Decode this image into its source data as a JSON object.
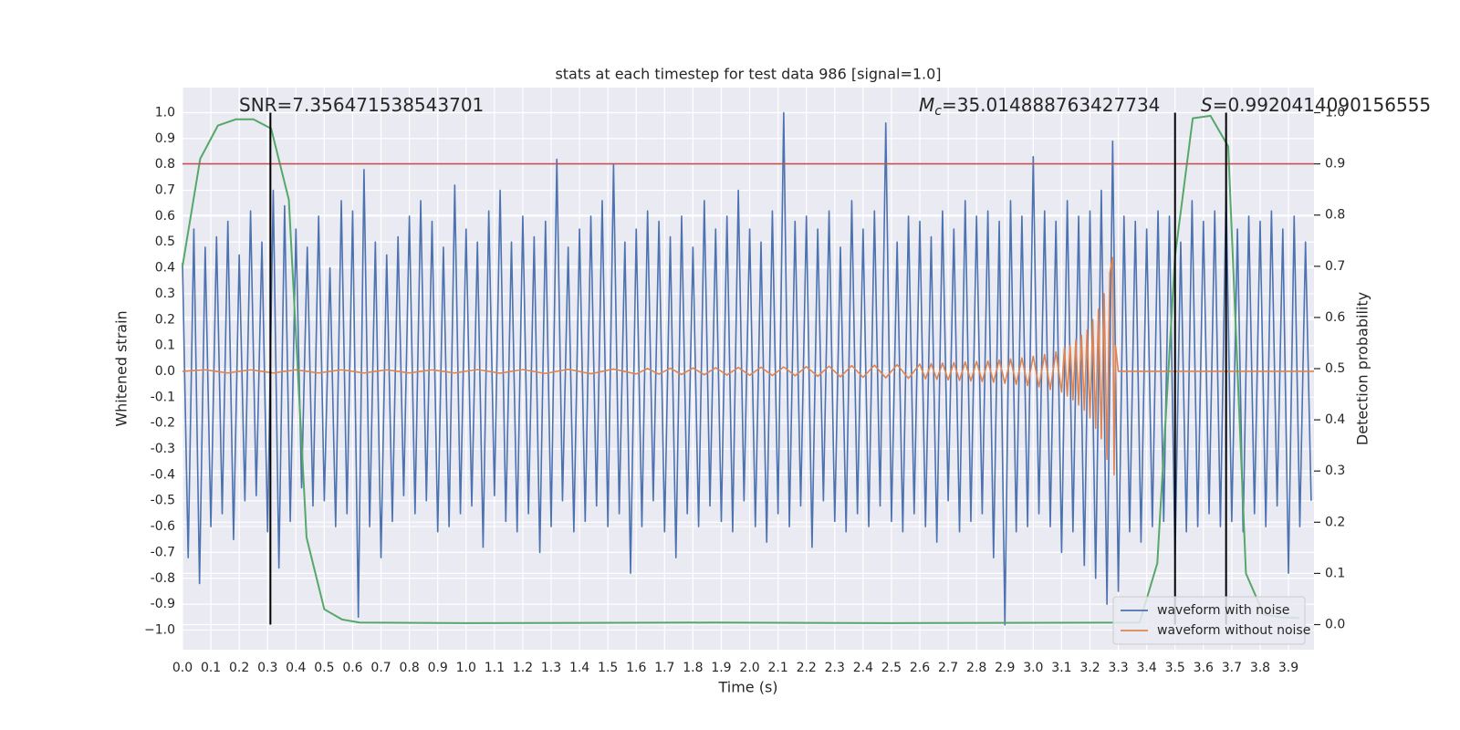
{
  "chart_data": {
    "type": "line",
    "title": "stats at each timestep for test data 986 [signal=1.0]",
    "xlabel": "Time (s)",
    "ylabel": "Whitened strain",
    "y2label": "Detection probability",
    "grid": true,
    "legend": "lower right",
    "xlim": [
      0,
      3.99
    ],
    "ylim": [
      -1.076,
      1.097
    ],
    "y2lim": [
      -0.049,
      1.049
    ],
    "xticks": [
      {
        "value": 0,
        "label": "0.0"
      },
      0.1,
      0.2,
      0.3,
      0.4,
      0.5,
      0.6,
      0.7,
      0.8,
      0.9,
      {
        "value": 1,
        "label": "1.0"
      },
      1.1,
      1.2,
      1.3,
      1.4,
      1.5,
      1.6,
      1.7,
      1.8,
      1.9,
      {
        "value": 2,
        "label": "2.0"
      },
      2.1,
      2.2,
      2.3,
      2.4,
      2.5,
      2.6,
      2.7,
      2.8,
      2.9,
      {
        "value": 3,
        "label": "3.0"
      },
      3.1,
      3.2,
      3.3,
      3.4,
      3.5,
      3.6,
      3.7,
      3.8,
      3.9
    ],
    "yticks": [
      {
        "value": -1,
        "label": "−1.0"
      },
      -0.9,
      -0.8,
      -0.7,
      -0.6,
      -0.5,
      -0.4,
      -0.3,
      -0.2,
      -0.1,
      {
        "value": 0,
        "label": "0.0"
      },
      0.1,
      0.2,
      0.3,
      0.4,
      0.5,
      0.6,
      0.7,
      0.8,
      0.9,
      {
        "value": 1,
        "label": "1.0"
      }
    ],
    "y2ticks": [
      {
        "value": 0,
        "label": "0.0"
      },
      0.1,
      0.2,
      0.3,
      0.4,
      0.5,
      0.6,
      0.7,
      0.8,
      0.9,
      {
        "value": 1,
        "label": "1.0"
      }
    ],
    "series": [
      {
        "name": "waveform with noise",
        "color": "#4c72b0",
        "x": [
          0,
          0.02,
          0.04,
          0.06,
          0.08,
          0.1,
          0.12,
          0.14,
          0.16,
          0.18,
          0.2,
          0.22,
          0.24,
          0.26,
          0.28,
          0.3,
          0.32,
          0.34,
          0.36,
          0.38,
          0.4,
          0.42,
          0.44,
          0.46,
          0.48,
          0.5,
          0.52,
          0.54,
          0.56,
          0.58,
          0.6,
          0.62,
          0.64,
          0.66,
          0.68,
          0.7,
          0.72,
          0.74,
          0.76,
          0.78,
          0.8,
          0.82,
          0.84,
          0.86,
          0.88,
          0.9,
          0.92,
          0.94,
          0.96,
          0.98,
          1,
          1.02,
          1.04,
          1.06,
          1.08,
          1.1,
          1.12,
          1.14,
          1.16,
          1.18,
          1.2,
          1.22,
          1.24,
          1.26,
          1.28,
          1.3,
          1.32,
          1.34,
          1.36,
          1.38,
          1.4,
          1.42,
          1.44,
          1.46,
          1.48,
          1.5,
          1.52,
          1.54,
          1.56,
          1.58,
          1.6,
          1.62,
          1.64,
          1.66,
          1.68,
          1.7,
          1.72,
          1.74,
          1.76,
          1.78,
          1.8,
          1.82,
          1.84,
          1.86,
          1.88,
          1.9,
          1.92,
          1.94,
          1.96,
          1.98,
          2,
          2.02,
          2.04,
          2.06,
          2.08,
          2.1,
          2.12,
          2.14,
          2.16,
          2.18,
          2.2,
          2.22,
          2.24,
          2.26,
          2.28,
          2.3,
          2.32,
          2.34,
          2.36,
          2.38,
          2.4,
          2.42,
          2.44,
          2.46,
          2.48,
          2.5,
          2.52,
          2.54,
          2.56,
          2.58,
          2.6,
          2.62,
          2.64,
          2.66,
          2.68,
          2.7,
          2.72,
          2.74,
          2.76,
          2.78,
          2.8,
          2.82,
          2.84,
          2.86,
          2.88,
          2.9,
          2.92,
          2.94,
          2.96,
          2.98,
          3,
          3.02,
          3.04,
          3.06,
          3.08,
          3.1,
          3.12,
          3.14,
          3.16,
          3.18,
          3.2,
          3.22,
          3.24,
          3.26,
          3.28,
          3.3,
          3.32,
          3.34,
          3.36,
          3.38,
          3.4,
          3.42,
          3.44,
          3.46,
          3.48,
          3.5,
          3.52,
          3.54,
          3.56,
          3.58,
          3.6,
          3.62,
          3.64,
          3.66,
          3.68,
          3.7,
          3.72,
          3.74,
          3.76,
          3.78,
          3.8,
          3.82,
          3.84,
          3.86,
          3.88,
          3.9,
          3.92,
          3.94,
          3.96,
          3.98
        ],
        "values": [
          0.42,
          -0.72,
          0.55,
          -0.82,
          0.48,
          -0.6,
          0.52,
          -0.55,
          0.58,
          -0.65,
          0.45,
          -0.5,
          0.62,
          -0.48,
          0.5,
          -0.62,
          0.7,
          -0.76,
          0.64,
          -0.58,
          0.55,
          -0.45,
          0.48,
          -0.52,
          0.6,
          -0.5,
          0.4,
          -0.6,
          0.66,
          -0.55,
          0.62,
          -0.95,
          0.78,
          -0.6,
          0.5,
          -0.72,
          0.45,
          -0.58,
          0.52,
          -0.48,
          0.6,
          -0.55,
          0.66,
          -0.5,
          0.58,
          -0.62,
          0.48,
          -0.6,
          0.72,
          -0.55,
          0.55,
          -0.52,
          0.5,
          -0.68,
          0.62,
          -0.48,
          0.7,
          -0.58,
          0.5,
          -0.62,
          0.6,
          -0.55,
          0.52,
          -0.7,
          0.58,
          -0.6,
          0.82,
          -0.5,
          0.48,
          -0.62,
          0.55,
          -0.58,
          0.6,
          -0.52,
          0.66,
          -0.6,
          0.8,
          -0.55,
          0.5,
          -0.78,
          0.55,
          -0.6,
          0.62,
          -0.5,
          0.58,
          -0.62,
          0.52,
          -0.72,
          0.6,
          -0.55,
          0.48,
          -0.6,
          0.66,
          -0.52,
          0.55,
          -0.58,
          0.6,
          -0.62,
          0.7,
          -0.5,
          0.55,
          -0.6,
          0.5,
          -0.66,
          0.62,
          -0.55,
          1.0,
          -0.6,
          0.58,
          -0.52,
          0.6,
          -0.68,
          0.55,
          -0.5,
          0.62,
          -0.58,
          0.48,
          -0.62,
          0.66,
          -0.55,
          0.55,
          -0.6,
          0.62,
          -0.52,
          0.96,
          -0.58,
          0.5,
          -0.62,
          0.6,
          -0.55,
          0.58,
          -0.6,
          0.52,
          -0.66,
          0.62,
          -0.5,
          0.55,
          -0.62,
          0.66,
          -0.58,
          0.6,
          -0.55,
          0.62,
          -0.72,
          0.58,
          -0.98,
          0.66,
          -0.62,
          0.6,
          -0.6,
          0.83,
          -0.55,
          0.62,
          -0.6,
          0.58,
          -0.7,
          0.66,
          -0.62,
          0.6,
          -0.75,
          0.62,
          -0.8,
          0.7,
          -0.9,
          0.89,
          -0.85,
          0.6,
          -0.62,
          0.58,
          -0.66,
          0.55,
          -0.6,
          0.62,
          -0.58,
          0.6,
          -0.72,
          0.5,
          -0.62,
          0.66,
          -0.6,
          0.58,
          -0.55,
          0.62,
          -0.6,
          0.7,
          -0.58,
          0.55,
          -0.62,
          0.6,
          -0.55,
          0.58,
          -0.6,
          0.62,
          -0.52,
          0.55,
          -0.78,
          0.6,
          -0.6,
          0.5,
          -0.5
        ]
      },
      {
        "name": "waveform without noise",
        "color": "#dd8452",
        "x": [
          0,
          0.08,
          0.16,
          0.24,
          0.32,
          0.4,
          0.48,
          0.56,
          0.64,
          0.72,
          0.8,
          0.88,
          0.96,
          1.04,
          1.12,
          1.2,
          1.28,
          1.36,
          1.44,
          1.52,
          1.6,
          1.64,
          1.68,
          1.72,
          1.76,
          1.8,
          1.84,
          1.88,
          1.92,
          1.96,
          2,
          2.04,
          2.08,
          2.12,
          2.16,
          2.2,
          2.24,
          2.28,
          2.32,
          2.36,
          2.4,
          2.44,
          2.48,
          2.52,
          2.56,
          2.6,
          2.62,
          2.64,
          2.66,
          2.68,
          2.7,
          2.72,
          2.74,
          2.76,
          2.78,
          2.8,
          2.82,
          2.84,
          2.86,
          2.88,
          2.9,
          2.92,
          2.94,
          2.96,
          2.98,
          3,
          3.02,
          3.04,
          3.06,
          3.08,
          3.1,
          3.11,
          3.12,
          3.13,
          3.14,
          3.15,
          3.16,
          3.17,
          3.18,
          3.19,
          3.2,
          3.21,
          3.22,
          3.23,
          3.24,
          3.25,
          3.26,
          3.27,
          3.28,
          3.285,
          3.29,
          3.3,
          3.99
        ],
        "values": [
          0,
          0.006,
          -0.006,
          0.006,
          -0.006,
          0.006,
          -0.006,
          0.006,
          -0.006,
          0.006,
          -0.006,
          0.006,
          -0.006,
          0.007,
          -0.007,
          0.007,
          -0.008,
          0.008,
          -0.009,
          0.009,
          -0.01,
          0.011,
          -0.011,
          0.012,
          -0.012,
          0.013,
          -0.013,
          0.014,
          -0.014,
          0.015,
          -0.015,
          0.016,
          -0.016,
          0.017,
          -0.017,
          0.018,
          -0.019,
          0.02,
          -0.021,
          0.022,
          -0.023,
          0.024,
          -0.025,
          0.026,
          -0.027,
          0.028,
          -0.029,
          0.03,
          -0.031,
          0.032,
          -0.033,
          0.034,
          -0.035,
          0.036,
          -0.037,
          0.038,
          -0.039,
          0.04,
          -0.042,
          0.044,
          -0.046,
          0.048,
          -0.05,
          0.052,
          -0.055,
          0.058,
          -0.06,
          0.065,
          -0.07,
          0.075,
          -0.08,
          0.09,
          -0.095,
          0.1,
          -0.11,
          0.12,
          -0.13,
          0.14,
          -0.15,
          0.16,
          -0.18,
          0.2,
          -0.22,
          0.24,
          -0.26,
          0.3,
          -0.34,
          0.38,
          0.44,
          -0.4,
          0.1,
          0,
          0
        ]
      },
      {
        "color": "#55a868",
        "axis": "y2",
        "x": [
          0,
          0.0625,
          0.125,
          0.1875,
          0.25,
          0.3125,
          0.375,
          0.4375,
          0.5,
          0.5625,
          0.625,
          1.0,
          1.875,
          2.5,
          3.375,
          3.4375,
          3.5,
          3.5625,
          3.625,
          3.6875,
          3.75,
          3.8125,
          3.875,
          3.9375
        ],
        "values": [
          0.7,
          0.91,
          0.975,
          0.987,
          0.987,
          0.969,
          0.83,
          0.17,
          0.03,
          0.01,
          0.004,
          0.003,
          0.004,
          0.003,
          0.004,
          0.12,
          0.72,
          0.989,
          0.994,
          0.934,
          0.1,
          0.02,
          0.014,
          0.013
        ]
      }
    ],
    "hline": {
      "axis": "y2",
      "value": 0.9,
      "color": "#c44e52"
    },
    "vlines": [
      0.31,
      3.5,
      3.68
    ],
    "vline_span": [
      0,
      1
    ],
    "annotations": [
      {
        "text": "SNR=7.356471538543701"
      },
      {
        "italic": "M",
        "subscript": "c",
        "text": "=35.014888763427734"
      },
      {
        "italic": "S",
        "text": "=0.9920414090156555"
      }
    ]
  }
}
